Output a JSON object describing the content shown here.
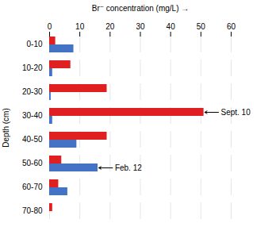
{
  "chart_data": {
    "type": "bar",
    "orientation": "horizontal",
    "xlabel": "Br⁻ concentration (mg/L)",
    "ylabel": "Depth (cm)",
    "categories": [
      "0-10",
      "10-20",
      "20-30",
      "30-40",
      "40-50",
      "50-60",
      "60-70",
      "70-80"
    ],
    "series": [
      {
        "name": "Sept. 10",
        "color": "#e02020",
        "values": [
          2,
          7,
          19,
          51,
          19,
          4,
          3,
          1
        ]
      },
      {
        "name": "Feb. 12",
        "color": "#4472c4",
        "values": [
          8,
          1,
          0.5,
          1,
          9,
          16,
          6,
          0
        ]
      }
    ],
    "xlim": [
      0,
      60
    ],
    "xticks": [
      0,
      10,
      20,
      30,
      40,
      50,
      60
    ],
    "grid": true,
    "annotations": [
      {
        "text": "Sept. 10",
        "category": "30-40"
      },
      {
        "text": "Feb. 12",
        "category": "50-60"
      }
    ]
  }
}
